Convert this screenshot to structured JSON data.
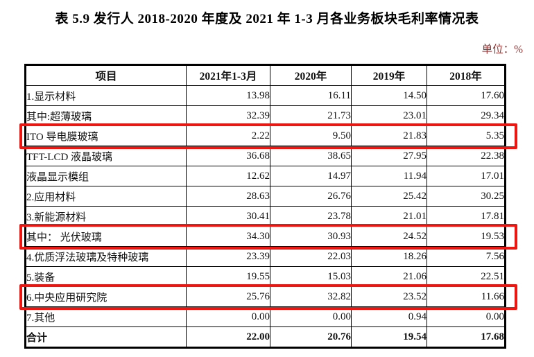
{
  "title": "表 5.9 发行人 2018-2020 年度及 2021 年 1-3 月各业务板块毛利率情况表",
  "unit_label": "单位：%",
  "colors": {
    "highlight_red": "#ee1611",
    "unit_text_red": "#943634",
    "table_border": "#000000",
    "text": "#111111",
    "background": "#ffffff"
  },
  "table": {
    "columns": [
      "项目",
      "2021年1-3月",
      "2020年",
      "2019年",
      "2018年"
    ],
    "rows": [
      {
        "label": "1.显示材料",
        "values": [
          "13.98",
          "16.11",
          "14.50",
          "17.60"
        ],
        "highlight": false,
        "bold": false
      },
      {
        "label": "其中:超薄玻璃",
        "values": [
          "32.39",
          "21.73",
          "23.01",
          "29.34"
        ],
        "highlight": false,
        "bold": false
      },
      {
        "label": "ITO 导电膜玻璃",
        "values": [
          "2.22",
          "9.50",
          "21.83",
          "5.35"
        ],
        "highlight": true,
        "bold": false
      },
      {
        "label": "TFT-LCD 液晶玻璃",
        "values": [
          "36.68",
          "38.65",
          "27.95",
          "22.38"
        ],
        "highlight": false,
        "bold": false
      },
      {
        "label": "液晶显示模组",
        "values": [
          "12.62",
          "14.97",
          "11.94",
          "17.01"
        ],
        "highlight": false,
        "bold": false
      },
      {
        "label": "2.应用材料",
        "values": [
          "28.63",
          "26.76",
          "25.42",
          "30.25"
        ],
        "highlight": false,
        "bold": false
      },
      {
        "label": "3.新能源材料",
        "values": [
          "30.41",
          "23.78",
          "21.01",
          "17.81"
        ],
        "highlight": false,
        "bold": false
      },
      {
        "label": "其中： 光伏玻璃",
        "values": [
          "34.30",
          "30.93",
          "24.52",
          "19.53"
        ],
        "highlight": true,
        "bold": false
      },
      {
        "label": "4.优质浮法玻璃及特种玻璃",
        "values": [
          "23.39",
          "22.03",
          "18.26",
          "7.56"
        ],
        "highlight": false,
        "bold": false
      },
      {
        "label": "5.装备",
        "values": [
          "19.55",
          "15.03",
          "21.06",
          "22.51"
        ],
        "highlight": false,
        "bold": false
      },
      {
        "label": "6.中央应用研究院",
        "values": [
          "25.76",
          "32.82",
          "23.52",
          "11.66"
        ],
        "highlight": true,
        "bold": false
      },
      {
        "label": "7.其他",
        "values": [
          "0.00",
          "0.00",
          "0.94",
          "0.00"
        ],
        "highlight": false,
        "bold": false
      },
      {
        "label": "合计",
        "values": [
          "22.00",
          "20.76",
          "19.54",
          "17.68"
        ],
        "highlight": false,
        "bold": true
      }
    ]
  }
}
